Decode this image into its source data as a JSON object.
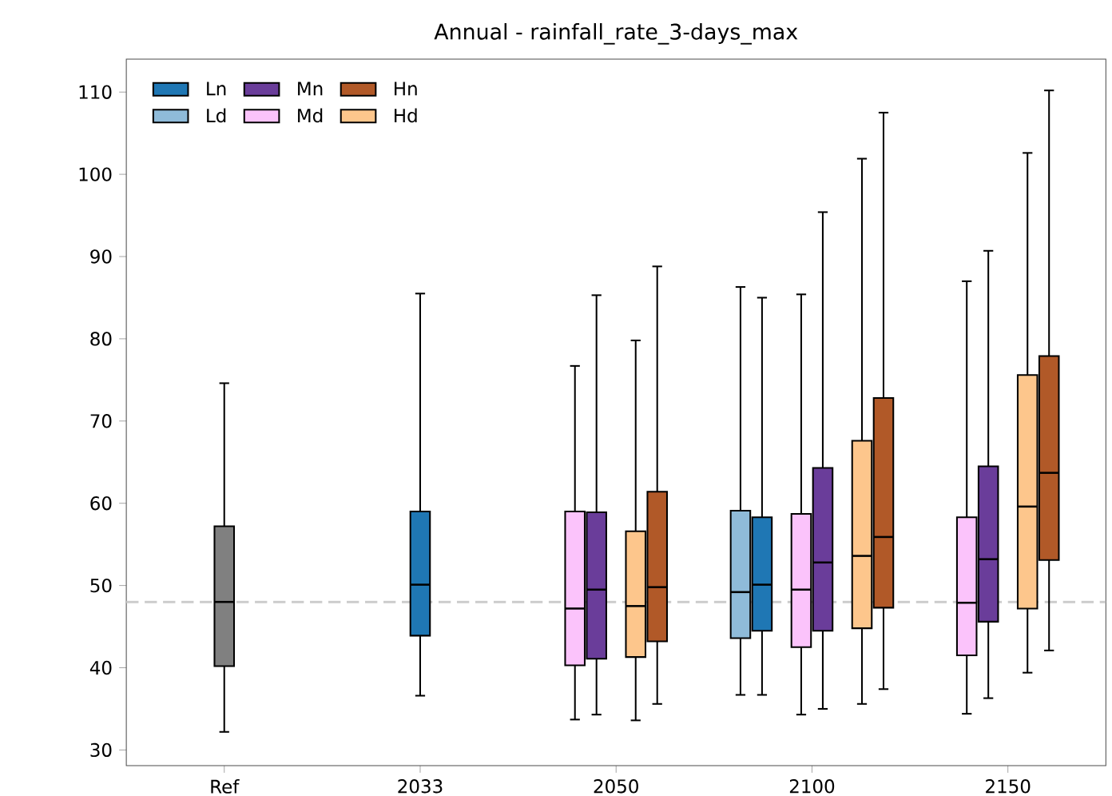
{
  "chart_data": {
    "type": "box",
    "title": "Annual - rainfall_rate_3-days_max",
    "categories": [
      "Ref",
      "2033",
      "2050",
      "2100",
      "2150"
    ],
    "ylim": [
      28.1,
      114
    ],
    "yticks": [
      30,
      40,
      50,
      60,
      70,
      80,
      90,
      100,
      110
    ],
    "legend": "top left",
    "ref_lines": [
      {
        "axis": "y",
        "value": 48.0,
        "color": "#cccccc",
        "line_style": "dashed"
      }
    ],
    "series": [
      {
        "name": "Ln",
        "color": "#1f77b4",
        "boxes": [
          null,
          {
            "low": 36.6,
            "q1": 43.9,
            "median": 50.1,
            "q3": 59.0,
            "high": 85.5
          },
          null,
          {
            "low": 36.7,
            "q1": 44.5,
            "median": 50.1,
            "q3": 58.3,
            "high": 85.0
          },
          null
        ]
      },
      {
        "name": "Ld",
        "color": "#8fbbd9",
        "boxes": [
          null,
          null,
          null,
          {
            "low": 36.7,
            "q1": 43.6,
            "median": 49.2,
            "q3": 59.1,
            "high": 86.3
          },
          null
        ]
      },
      {
        "name": "Mn",
        "color": "#6a3d9a",
        "boxes": [
          null,
          null,
          {
            "low": 34.3,
            "q1": 41.1,
            "median": 49.5,
            "q3": 58.9,
            "high": 85.3
          },
          {
            "low": 35.0,
            "q1": 44.5,
            "median": 52.8,
            "q3": 64.3,
            "high": 95.4
          },
          {
            "low": 36.3,
            "q1": 45.6,
            "median": 53.2,
            "q3": 64.5,
            "high": 90.7
          }
        ]
      },
      {
        "name": "Md",
        "color": "#fbc3fb",
        "boxes": [
          null,
          null,
          {
            "low": 33.7,
            "q1": 40.3,
            "median": 47.2,
            "q3": 59.0,
            "high": 76.7
          },
          {
            "low": 34.3,
            "q1": 42.5,
            "median": 49.5,
            "q3": 58.7,
            "high": 85.4
          },
          {
            "low": 34.4,
            "q1": 41.5,
            "median": 47.9,
            "q3": 58.3,
            "high": 87.0
          }
        ]
      },
      {
        "name": "Hn",
        "color": "#b15928",
        "boxes": [
          null,
          null,
          {
            "low": 35.6,
            "q1": 43.2,
            "median": 49.8,
            "q3": 61.4,
            "high": 88.8
          },
          {
            "low": 37.4,
            "q1": 47.3,
            "median": 55.9,
            "q3": 72.8,
            "high": 107.5
          },
          {
            "low": 42.1,
            "q1": 53.1,
            "median": 63.7,
            "q3": 77.9,
            "high": 110.2
          }
        ]
      },
      {
        "name": "Hd",
        "color": "#fdc68c",
        "boxes": [
          null,
          null,
          {
            "low": 33.6,
            "q1": 41.3,
            "median": 47.5,
            "q3": 56.6,
            "high": 79.8
          },
          {
            "low": 35.6,
            "q1": 44.8,
            "median": 53.6,
            "q3": 67.6,
            "high": 101.9
          },
          {
            "low": 39.4,
            "q1": 47.2,
            "median": 59.6,
            "q3": 75.6,
            "high": 102.6
          }
        ]
      },
      {
        "color": "#808080",
        "boxes": [
          {
            "low": 32.2,
            "q1": 40.2,
            "median": 48.0,
            "q3": 57.2,
            "high": 74.6
          },
          null,
          null,
          null,
          null
        ]
      }
    ]
  }
}
